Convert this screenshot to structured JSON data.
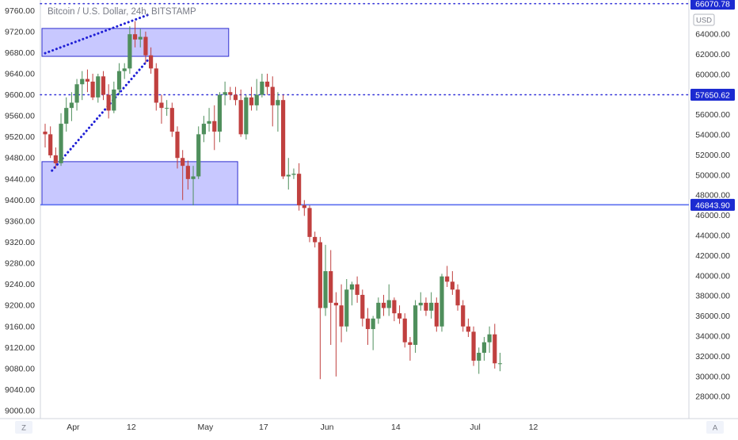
{
  "chart_data": {
    "type": "candlestick",
    "title": "Bitcoin / U.S. Dollar, 24h, BITSTAMP",
    "currency_badge": "USD",
    "left_axis": {
      "ylim": [
        8985,
        9780
      ],
      "ticks": [
        "9760.00",
        "9720.00",
        "9680.00",
        "9640.00",
        "9600.00",
        "9560.00",
        "9520.00",
        "9480.00",
        "9440.00",
        "9400.00",
        "9360.00",
        "9320.00",
        "9280.00",
        "9240.00",
        "9200.00",
        "9160.00",
        "9120.00",
        "9080.00",
        "9040.00",
        "9000.00"
      ]
    },
    "right_axis": {
      "ticks": [
        "64000.00",
        "62000.00",
        "60000.00",
        "58000.00",
        "56000.00",
        "54000.00",
        "52000.00",
        "50000.00",
        "48000.00",
        "46000.00",
        "44000.00",
        "42000.00",
        "40000.00",
        "38000.00",
        "36000.00",
        "34000.00",
        "32000.00",
        "30000.00",
        "28000.00"
      ],
      "top_tag": "66070.78"
    },
    "x_axis": {
      "ticks": [
        {
          "label": "Apr",
          "day": 5
        },
        {
          "label": "12",
          "day": 16
        },
        {
          "label": "May",
          "day": 30
        },
        {
          "label": "17",
          "day": 41
        },
        {
          "label": "Jun",
          "day": 53
        },
        {
          "label": "14",
          "day": 66
        },
        {
          "label": "Jul",
          "day": 81
        },
        {
          "label": "12",
          "day": 92
        }
      ]
    },
    "corner_left": "Z",
    "corner_right": "A",
    "levels": [
      {
        "price": 9773,
        "style": "dotted",
        "tag": ""
      },
      {
        "price": 9600,
        "style": "dotted",
        "tag": "57650.62"
      },
      {
        "price": 9391,
        "style": "solid",
        "tag": "46843.90"
      }
    ],
    "zones": [
      {
        "start_day": 0.0,
        "end_day": 34.7,
        "top": 9726,
        "bottom": 9673
      },
      {
        "start_day": 0.0,
        "end_day": 36.4,
        "top": 9473,
        "bottom": 9391
      }
    ],
    "trendlines": [
      {
        "from": {
          "day": 0.0,
          "price": 9679
        },
        "to": {
          "day": 19.5,
          "price": 9752
        }
      },
      {
        "from": {
          "day": 1.3,
          "price": 9456
        },
        "to": {
          "day": 19.6,
          "price": 9668
        }
      }
    ],
    "bullish_color": "#4f8f5c",
    "bearish_color": "#c0403f",
    "candles": [
      {
        "day": 0,
        "o": 9530,
        "h": 9545,
        "l": 9500,
        "c": 9525
      },
      {
        "day": 1,
        "o": 9525,
        "h": 9540,
        "l": 9480,
        "c": 9485
      },
      {
        "day": 2,
        "o": 9485,
        "h": 9500,
        "l": 9460,
        "c": 9470
      },
      {
        "day": 3,
        "o": 9470,
        "h": 9565,
        "l": 9465,
        "c": 9545
      },
      {
        "day": 4,
        "o": 9545,
        "h": 9595,
        "l": 9530,
        "c": 9575
      },
      {
        "day": 5,
        "o": 9575,
        "h": 9605,
        "l": 9550,
        "c": 9585
      },
      {
        "day": 6,
        "o": 9585,
        "h": 9630,
        "l": 9570,
        "c": 9620
      },
      {
        "day": 7,
        "o": 9620,
        "h": 9645,
        "l": 9590,
        "c": 9630
      },
      {
        "day": 8,
        "o": 9630,
        "h": 9648,
        "l": 9605,
        "c": 9625
      },
      {
        "day": 9,
        "o": 9625,
        "h": 9640,
        "l": 9590,
        "c": 9595
      },
      {
        "day": 10,
        "o": 9595,
        "h": 9640,
        "l": 9585,
        "c": 9635
      },
      {
        "day": 11,
        "o": 9635,
        "h": 9645,
        "l": 9590,
        "c": 9600
      },
      {
        "day": 12,
        "o": 9600,
        "h": 9620,
        "l": 9555,
        "c": 9570
      },
      {
        "day": 13,
        "o": 9570,
        "h": 9625,
        "l": 9565,
        "c": 9610
      },
      {
        "day": 14,
        "o": 9610,
        "h": 9660,
        "l": 9600,
        "c": 9645
      },
      {
        "day": 15,
        "o": 9645,
        "h": 9660,
        "l": 9630,
        "c": 9650
      },
      {
        "day": 16,
        "o": 9650,
        "h": 9730,
        "l": 9640,
        "c": 9715
      },
      {
        "day": 17,
        "o": 9715,
        "h": 9740,
        "l": 9690,
        "c": 9705
      },
      {
        "day": 18,
        "o": 9705,
        "h": 9725,
        "l": 9690,
        "c": 9710
      },
      {
        "day": 19,
        "o": 9710,
        "h": 9720,
        "l": 9660,
        "c": 9675
      },
      {
        "day": 20,
        "o": 9675,
        "h": 9690,
        "l": 9640,
        "c": 9650
      },
      {
        "day": 21,
        "o": 9650,
        "h": 9660,
        "l": 9570,
        "c": 9585
      },
      {
        "day": 22,
        "o": 9585,
        "h": 9600,
        "l": 9545,
        "c": 9575
      },
      {
        "day": 23,
        "o": 9575,
        "h": 9590,
        "l": 9560,
        "c": 9575
      },
      {
        "day": 24,
        "o": 9575,
        "h": 9585,
        "l": 9520,
        "c": 9530
      },
      {
        "day": 25,
        "o": 9530,
        "h": 9540,
        "l": 9460,
        "c": 9480
      },
      {
        "day": 26,
        "o": 9480,
        "h": 9495,
        "l": 9400,
        "c": 9465
      },
      {
        "day": 27,
        "o": 9465,
        "h": 9475,
        "l": 9420,
        "c": 9440
      },
      {
        "day": 28,
        "o": 9440,
        "h": 9465,
        "l": 9390,
        "c": 9445
      },
      {
        "day": 29,
        "o": 9445,
        "h": 9540,
        "l": 9440,
        "c": 9525
      },
      {
        "day": 30,
        "o": 9525,
        "h": 9560,
        "l": 9510,
        "c": 9545
      },
      {
        "day": 31,
        "o": 9545,
        "h": 9575,
        "l": 9530,
        "c": 9550
      },
      {
        "day": 32,
        "o": 9550,
        "h": 9580,
        "l": 9495,
        "c": 9530
      },
      {
        "day": 33,
        "o": 9530,
        "h": 9605,
        "l": 9510,
        "c": 9600
      },
      {
        "day": 34,
        "o": 9600,
        "h": 9625,
        "l": 9580,
        "c": 9605
      },
      {
        "day": 35,
        "o": 9605,
        "h": 9615,
        "l": 9590,
        "c": 9600
      },
      {
        "day": 36,
        "o": 9600,
        "h": 9615,
        "l": 9580,
        "c": 9590
      },
      {
        "day": 37,
        "o": 9590,
        "h": 9610,
        "l": 9520,
        "c": 9525
      },
      {
        "day": 38,
        "o": 9525,
        "h": 9600,
        "l": 9515,
        "c": 9595
      },
      {
        "day": 39,
        "o": 9595,
        "h": 9615,
        "l": 9570,
        "c": 9580
      },
      {
        "day": 40,
        "o": 9580,
        "h": 9630,
        "l": 9570,
        "c": 9600
      },
      {
        "day": 41,
        "o": 9600,
        "h": 9640,
        "l": 9595,
        "c": 9625
      },
      {
        "day": 42,
        "o": 9625,
        "h": 9640,
        "l": 9600,
        "c": 9615
      },
      {
        "day": 43,
        "o": 9615,
        "h": 9635,
        "l": 9540,
        "c": 9580
      },
      {
        "day": 44,
        "o": 9580,
        "h": 9605,
        "l": 9530,
        "c": 9590
      },
      {
        "day": 45,
        "o": 9590,
        "h": 9600,
        "l": 9440,
        "c": 9445
      },
      {
        "day": 46,
        "o": 9445,
        "h": 9480,
        "l": 9420,
        "c": 9448
      },
      {
        "day": 47,
        "o": 9448,
        "h": 9460,
        "l": 9440,
        "c": 9450
      },
      {
        "day": 48,
        "o": 9450,
        "h": 9470,
        "l": 9380,
        "c": 9390
      },
      {
        "day": 49,
        "o": 9390,
        "h": 9400,
        "l": 9370,
        "c": 9385
      },
      {
        "day": 50,
        "o": 9385,
        "h": 9390,
        "l": 9320,
        "c": 9330
      },
      {
        "day": 51,
        "o": 9330,
        "h": 9340,
        "l": 9310,
        "c": 9320
      },
      {
        "day": 52,
        "o": 9320,
        "h": 9330,
        "l": 9060,
        "c": 9195
      },
      {
        "day": 53,
        "o": 9195,
        "h": 9315,
        "l": 9180,
        "c": 9265
      },
      {
        "day": 54,
        "o": 9265,
        "h": 9305,
        "l": 9125,
        "c": 9205
      },
      {
        "day": 55,
        "o": 9205,
        "h": 9225,
        "l": 9065,
        "c": 9200
      },
      {
        "day": 56,
        "o": 9200,
        "h": 9240,
        "l": 9130,
        "c": 9160
      },
      {
        "day": 57,
        "o": 9160,
        "h": 9250,
        "l": 9150,
        "c": 9230
      },
      {
        "day": 58,
        "o": 9230,
        "h": 9245,
        "l": 9200,
        "c": 9240
      },
      {
        "day": 59,
        "o": 9240,
        "h": 9255,
        "l": 9205,
        "c": 9220
      },
      {
        "day": 60,
        "o": 9220,
        "h": 9230,
        "l": 9160,
        "c": 9175
      },
      {
        "day": 61,
        "o": 9175,
        "h": 9195,
        "l": 9125,
        "c": 9155
      },
      {
        "day": 62,
        "o": 9155,
        "h": 9180,
        "l": 9115,
        "c": 9175
      },
      {
        "day": 63,
        "o": 9175,
        "h": 9215,
        "l": 9165,
        "c": 9205
      },
      {
        "day": 64,
        "o": 9205,
        "h": 9220,
        "l": 9180,
        "c": 9195
      },
      {
        "day": 65,
        "o": 9195,
        "h": 9240,
        "l": 9180,
        "c": 9210
      },
      {
        "day": 66,
        "o": 9210,
        "h": 9215,
        "l": 9170,
        "c": 9185
      },
      {
        "day": 67,
        "o": 9185,
        "h": 9200,
        "l": 9165,
        "c": 9175
      },
      {
        "day": 68,
        "o": 9175,
        "h": 9185,
        "l": 9120,
        "c": 9130
      },
      {
        "day": 69,
        "o": 9130,
        "h": 9140,
        "l": 9095,
        "c": 9125
      },
      {
        "day": 70,
        "o": 9125,
        "h": 9210,
        "l": 9110,
        "c": 9200
      },
      {
        "day": 71,
        "o": 9200,
        "h": 9225,
        "l": 9190,
        "c": 9205
      },
      {
        "day": 72,
        "o": 9205,
        "h": 9215,
        "l": 9180,
        "c": 9190
      },
      {
        "day": 73,
        "o": 9190,
        "h": 9225,
        "l": 9175,
        "c": 9205
      },
      {
        "day": 74,
        "o": 9205,
        "h": 9215,
        "l": 9150,
        "c": 9160
      },
      {
        "day": 75,
        "o": 9160,
        "h": 9260,
        "l": 9150,
        "c": 9255
      },
      {
        "day": 76,
        "o": 9255,
        "h": 9275,
        "l": 9235,
        "c": 9245
      },
      {
        "day": 77,
        "o": 9245,
        "h": 9265,
        "l": 9220,
        "c": 9230
      },
      {
        "day": 78,
        "o": 9230,
        "h": 9240,
        "l": 9190,
        "c": 9200
      },
      {
        "day": 79,
        "o": 9200,
        "h": 9210,
        "l": 9150,
        "c": 9160
      },
      {
        "day": 80,
        "o": 9160,
        "h": 9175,
        "l": 9140,
        "c": 9150
      },
      {
        "day": 81,
        "o": 9150,
        "h": 9160,
        "l": 9085,
        "c": 9095
      },
      {
        "day": 82,
        "o": 9095,
        "h": 9120,
        "l": 9070,
        "c": 9110
      },
      {
        "day": 83,
        "o": 9110,
        "h": 9140,
        "l": 9095,
        "c": 9130
      },
      {
        "day": 84,
        "o": 9130,
        "h": 9160,
        "l": 9110,
        "c": 9145
      },
      {
        "day": 85,
        "o": 9145,
        "h": 9165,
        "l": 9080,
        "c": 9090
      },
      {
        "day": 86,
        "o": 9090,
        "h": 9110,
        "l": 9075,
        "c": 9090
      }
    ]
  }
}
